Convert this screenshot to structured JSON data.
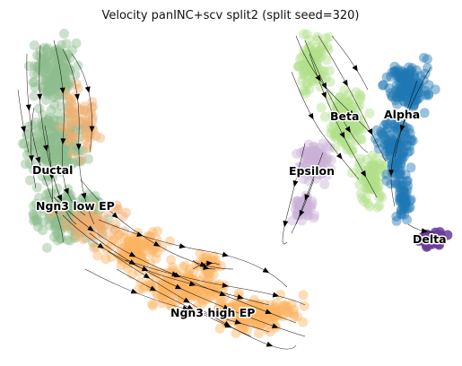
{
  "title": "Velocity panINC+scv split2 (split seed=320)",
  "chart_data": {
    "type": "scatter",
    "title": "Velocity panINC+scv split2 (split seed=320)",
    "xlabel": "",
    "ylabel": "",
    "axes_visible": false,
    "grid": false,
    "legend": "on data",
    "overlay": "velocity streamlines with arrowheads",
    "clusters": [
      {
        "name": "Ductal",
        "color": "#8fbc8f"
      },
      {
        "name": "Ngn3 low EP",
        "color": "#f0b070"
      },
      {
        "name": "Ngn3 high EP",
        "color": "#fdb462"
      },
      {
        "name": "Beta",
        "color": "#b2df8a"
      },
      {
        "name": "Alpha",
        "color": "#1f78b4"
      },
      {
        "name": "Epsilon",
        "color": "#cab2d6"
      },
      {
        "name": "Delta",
        "color": "#6a3d9a"
      }
    ],
    "labels": [
      "Ductal",
      "Ngn3 low EP",
      "Ngn3 high EP",
      "Beta",
      "Alpha",
      "Epsilon",
      "Delta"
    ]
  }
}
